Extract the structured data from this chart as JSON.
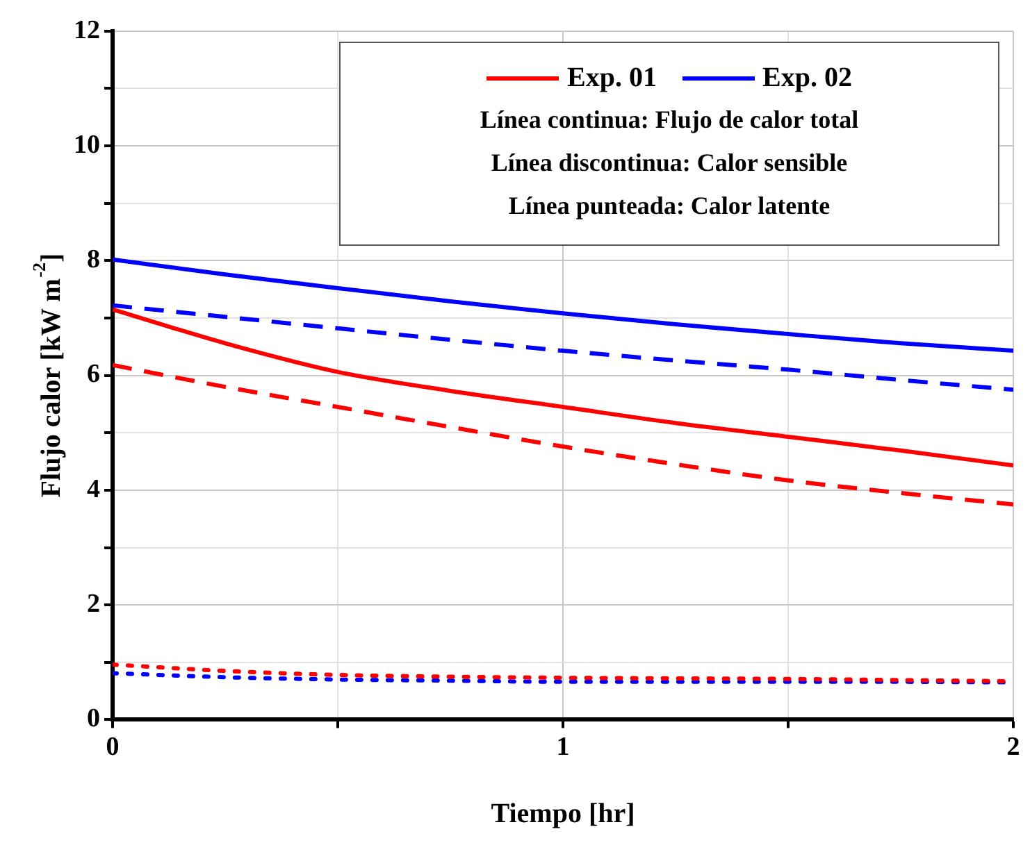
{
  "chart_data": {
    "type": "line",
    "x": [
      0,
      0.25,
      0.5,
      0.75,
      1,
      1.25,
      1.5,
      1.75,
      2
    ],
    "xlabel": "Tiempo [hr]",
    "ylabel": "Flujo calor [kW m$^{-2}$]",
    "xlim": [
      0,
      2
    ],
    "xticks": [
      0,
      {
        "value": 0.5,
        "label": null
      },
      1,
      {
        "value": 1.5,
        "label": null
      },
      2
    ],
    "ylim": [
      0,
      12
    ],
    "yticks": [
      0,
      {
        "value": 1,
        "label": null
      },
      2,
      {
        "value": 3,
        "label": null
      },
      4,
      {
        "value": 5,
        "label": null
      },
      6,
      {
        "value": 7,
        "label": null
      },
      8,
      {
        "value": 9,
        "label": null
      },
      10,
      {
        "value": 11,
        "label": null
      },
      12
    ],
    "grid": true,
    "legend": "top right",
    "marker": "none",
    "annotations": [
      "Línea continua: Flujo de calor total",
      "Línea discontinua: Calor sensible",
      "Línea punteada: Calor latente"
    ],
    "series": [
      {
        "name": "Exp. 01",
        "color": "#ff0000",
        "line_style": "solid",
        "values": [
          7.15,
          6.56,
          6.06,
          5.73,
          5.45,
          5.17,
          4.93,
          4.69,
          4.43
        ]
      },
      {
        "name": "Exp. 02",
        "color": "#0000ff",
        "line_style": "solid",
        "values": [
          8.02,
          7.76,
          7.52,
          7.29,
          7.08,
          6.89,
          6.72,
          6.56,
          6.43
        ]
      },
      {
        "color": "#ff0000",
        "line_style": "dashed",
        "values": [
          6.18,
          5.8,
          5.45,
          5.1,
          4.76,
          4.45,
          4.17,
          3.95,
          3.75
        ]
      },
      {
        "color": "#0000ff",
        "line_style": "dashed",
        "values": [
          7.22,
          7.02,
          6.82,
          6.62,
          6.43,
          6.26,
          6.1,
          5.92,
          5.75
        ]
      },
      {
        "color": "#ff0000",
        "line_style": "dotted",
        "values": [
          0.96,
          0.85,
          0.78,
          0.75,
          0.73,
          0.72,
          0.71,
          0.69,
          0.67
        ]
      },
      {
        "color": "#0000ff",
        "line_style": "dotted",
        "values": [
          0.81,
          0.74,
          0.7,
          0.68,
          0.66,
          0.66,
          0.66,
          0.66,
          0.65
        ]
      }
    ]
  }
}
